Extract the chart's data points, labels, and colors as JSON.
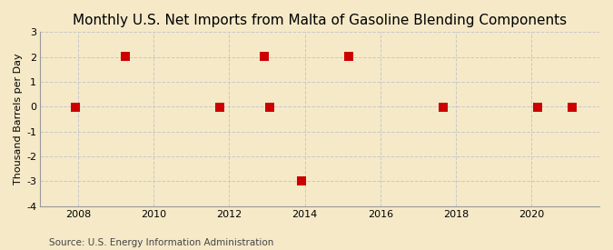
{
  "title": "Monthly U.S. Net Imports from Malta of Gasoline Blending Components",
  "ylabel": "Thousand Barrels per Day",
  "source": "Source: U.S. Energy Information Administration",
  "background_color": "#f5e9c8",
  "plot_bg_color": "#f5e9c8",
  "marker_color": "#cc0000",
  "marker_size": 48,
  "xlim": [
    2007.0,
    2021.8
  ],
  "ylim": [
    -4,
    3
  ],
  "yticks": [
    -4,
    -3,
    -2,
    -1,
    0,
    1,
    2,
    3
  ],
  "xticks": [
    2008,
    2010,
    2012,
    2014,
    2016,
    2018,
    2020
  ],
  "data_x": [
    2007.92,
    2009.25,
    2011.75,
    2012.92,
    2013.08,
    2013.92,
    2015.17,
    2017.67,
    2020.17,
    2021.08
  ],
  "data_y": [
    -0.02,
    2.02,
    -0.02,
    2.02,
    -0.02,
    -3.0,
    2.02,
    -0.02,
    -0.02,
    -0.02
  ],
  "grid_color": "#c8c8c8",
  "spine_color": "#999999",
  "title_fontsize": 11,
  "axis_fontsize": 8,
  "source_fontsize": 7.5
}
